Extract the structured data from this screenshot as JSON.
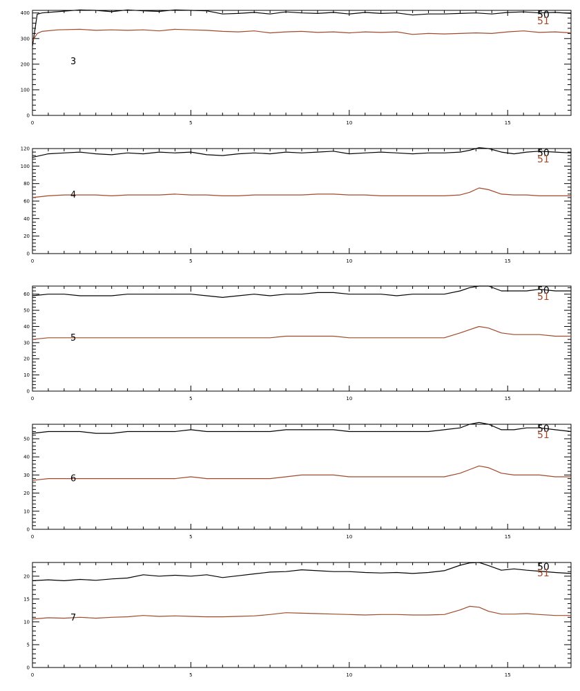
{
  "colors": {
    "series_50": "#000000",
    "series_51": "#a0482a",
    "axis": "#000000",
    "background": "#ffffff"
  },
  "chart_data": [
    {
      "type": "line",
      "panel_label": "3",
      "xlim": [
        0,
        17
      ],
      "ylim": [
        0,
        410
      ],
      "xticks": [
        0,
        5,
        10,
        15
      ],
      "yticks": [
        0,
        100,
        200,
        300,
        400
      ],
      "legend": [
        "50",
        "51"
      ],
      "series": [
        {
          "name": "50",
          "x": [
            0,
            0.15,
            0.3,
            0.8,
            1.5,
            2,
            2.5,
            3,
            3.5,
            4,
            4.5,
            5,
            5.5,
            6,
            6.5,
            7,
            7.5,
            8,
            8.5,
            9,
            9.5,
            10,
            10.5,
            11,
            11.5,
            12,
            12.5,
            13,
            13.5,
            14,
            14.5,
            15,
            15.5,
            16,
            16.5,
            17
          ],
          "y": [
            270,
            395,
            400,
            405,
            412,
            410,
            405,
            412,
            408,
            406,
            412,
            410,
            408,
            396,
            398,
            402,
            396,
            404,
            400,
            398,
            402,
            396,
            402,
            398,
            400,
            392,
            396,
            396,
            398,
            400,
            396,
            402,
            404,
            400,
            402,
            398
          ]
        },
        {
          "name": "51",
          "x": [
            0,
            0.15,
            0.3,
            0.8,
            1.5,
            2,
            2.5,
            3,
            3.5,
            4,
            4.5,
            5,
            5.5,
            6,
            6.5,
            7,
            7.5,
            8,
            8.5,
            9,
            9.5,
            10,
            10.5,
            11,
            11.5,
            12,
            12.5,
            13,
            13.5,
            14,
            14.5,
            15,
            15.5,
            16,
            16.5,
            17
          ],
          "y": [
            290,
            320,
            328,
            334,
            336,
            332,
            334,
            332,
            334,
            330,
            336,
            334,
            332,
            328,
            326,
            330,
            322,
            326,
            328,
            324,
            326,
            322,
            326,
            324,
            326,
            316,
            320,
            318,
            320,
            322,
            320,
            326,
            330,
            324,
            326,
            322
          ]
        }
      ]
    },
    {
      "type": "line",
      "panel_label": "4",
      "xlim": [
        0,
        17
      ],
      "ylim": [
        0,
        120
      ],
      "xticks": [
        0,
        5,
        10,
        15
      ],
      "yticks": [
        0,
        20,
        40,
        60,
        80,
        100,
        120
      ],
      "legend": [
        "50",
        "51"
      ],
      "series": [
        {
          "name": "50",
          "x": [
            0,
            0.5,
            1,
            1.5,
            2,
            2.5,
            3,
            3.5,
            4,
            4.5,
            5,
            5.5,
            6,
            6.5,
            7,
            7.5,
            8,
            8.5,
            9,
            9.5,
            10,
            10.5,
            11,
            11.5,
            12,
            12.5,
            13,
            13.5,
            13.8,
            14.1,
            14.4,
            14.8,
            15.2,
            15.6,
            16,
            16.5,
            17
          ],
          "y": [
            110,
            114,
            115,
            116,
            114,
            113,
            115,
            114,
            116,
            115,
            116,
            113,
            112,
            114,
            115,
            114,
            116,
            115,
            116,
            117,
            114,
            115,
            116,
            115,
            114,
            115,
            115,
            116,
            118,
            121,
            120,
            116,
            114,
            116,
            117,
            116,
            115
          ]
        },
        {
          "name": "51",
          "x": [
            0,
            0.5,
            1,
            1.5,
            2,
            2.5,
            3,
            3.5,
            4,
            4.5,
            5,
            5.5,
            6,
            6.5,
            7,
            7.5,
            8,
            8.5,
            9,
            9.5,
            10,
            10.5,
            11,
            11.5,
            12,
            12.5,
            13,
            13.5,
            13.8,
            14.1,
            14.4,
            14.8,
            15.2,
            15.6,
            16,
            16.5,
            17
          ],
          "y": [
            64,
            66,
            67,
            67,
            67,
            66,
            67,
            67,
            67,
            68,
            67,
            67,
            66,
            66,
            67,
            67,
            67,
            67,
            68,
            68,
            67,
            67,
            66,
            66,
            66,
            66,
            66,
            67,
            70,
            75,
            73,
            68,
            67,
            67,
            66,
            66,
            66
          ]
        }
      ]
    },
    {
      "type": "line",
      "panel_label": "5",
      "xlim": [
        0,
        17
      ],
      "ylim": [
        0,
        65
      ],
      "xticks": [
        0,
        5,
        10,
        15
      ],
      "yticks": [
        0,
        10,
        20,
        30,
        40,
        50,
        60
      ],
      "legend": [
        "50",
        "51"
      ],
      "series": [
        {
          "name": "50",
          "x": [
            0,
            0.5,
            1,
            1.5,
            2,
            2.5,
            3,
            3.5,
            4,
            4.5,
            5,
            5.5,
            6,
            6.5,
            7,
            7.5,
            8,
            8.5,
            9,
            9.5,
            10,
            10.5,
            11,
            11.5,
            12,
            12.5,
            13,
            13.5,
            13.8,
            14.1,
            14.4,
            14.8,
            15.2,
            15.6,
            16,
            16.5,
            17
          ],
          "y": [
            59,
            60,
            60,
            59,
            59,
            59,
            60,
            60,
            60,
            60,
            60,
            59,
            58,
            59,
            60,
            59,
            60,
            60,
            61,
            61,
            60,
            60,
            60,
            59,
            60,
            60,
            60,
            62,
            64,
            65,
            65,
            62,
            62,
            62,
            63,
            62,
            62
          ]
        },
        {
          "name": "51",
          "x": [
            0,
            0.5,
            1,
            1.5,
            2,
            2.5,
            3,
            3.5,
            4,
            4.5,
            5,
            5.5,
            6,
            6.5,
            7,
            7.5,
            8,
            8.5,
            9,
            9.5,
            10,
            10.5,
            11,
            11.5,
            12,
            12.5,
            13,
            13.5,
            13.8,
            14.1,
            14.4,
            14.8,
            15.2,
            15.6,
            16,
            16.5,
            17
          ],
          "y": [
            32,
            33,
            33,
            33,
            33,
            33,
            33,
            33,
            33,
            33,
            33,
            33,
            33,
            33,
            33,
            33,
            34,
            34,
            34,
            34,
            33,
            33,
            33,
            33,
            33,
            33,
            33,
            36,
            38,
            40,
            39,
            36,
            35,
            35,
            35,
            34,
            34
          ]
        }
      ]
    },
    {
      "type": "line",
      "panel_label": "6",
      "xlim": [
        0,
        17
      ],
      "ylim": [
        0,
        58
      ],
      "xticks": [
        0,
        5,
        10,
        15
      ],
      "yticks": [
        0,
        10,
        20,
        30,
        40,
        50
      ],
      "legend": [
        "50",
        "51"
      ],
      "series": [
        {
          "name": "50",
          "x": [
            0,
            0.5,
            1,
            1.5,
            2,
            2.5,
            3,
            3.5,
            4,
            4.5,
            5,
            5.5,
            6,
            6.5,
            7,
            7.5,
            8,
            8.5,
            9,
            9.5,
            10,
            10.5,
            11,
            11.5,
            12,
            12.5,
            13,
            13.5,
            13.8,
            14.1,
            14.4,
            14.8,
            15.2,
            15.6,
            16,
            16.5,
            17
          ],
          "y": [
            53,
            54,
            54,
            54,
            53,
            53,
            54,
            54,
            54,
            54,
            55,
            54,
            54,
            54,
            54,
            54,
            55,
            55,
            55,
            55,
            54,
            54,
            54,
            54,
            54,
            54,
            55,
            56,
            58,
            59,
            58,
            55,
            55,
            56,
            56,
            55,
            54
          ]
        },
        {
          "name": "51",
          "x": [
            0,
            0.5,
            1,
            1.5,
            2,
            2.5,
            3,
            3.5,
            4,
            4.5,
            5,
            5.5,
            6,
            6.5,
            7,
            7.5,
            8,
            8.5,
            9,
            9.5,
            10,
            10.5,
            11,
            11.5,
            12,
            12.5,
            13,
            13.5,
            13.8,
            14.1,
            14.4,
            14.8,
            15.2,
            15.6,
            16,
            16.5,
            17
          ],
          "y": [
            27,
            28,
            28,
            28,
            28,
            28,
            28,
            28,
            28,
            28,
            29,
            28,
            28,
            28,
            28,
            28,
            29,
            30,
            30,
            30,
            29,
            29,
            29,
            29,
            29,
            29,
            29,
            31,
            33,
            35,
            34,
            31,
            30,
            30,
            30,
            29,
            29
          ]
        }
      ]
    },
    {
      "type": "line",
      "panel_label": "7",
      "xlim": [
        0,
        17
      ],
      "ylim": [
        0,
        23
      ],
      "xticks": [
        0,
        5,
        10,
        15
      ],
      "yticks": [
        0,
        5,
        10,
        15,
        20
      ],
      "legend": [
        "50",
        "51"
      ],
      "series": [
        {
          "name": "50",
          "x": [
            0,
            0.5,
            1,
            1.5,
            2,
            2.5,
            3,
            3.5,
            4,
            4.5,
            5,
            5.5,
            6,
            6.5,
            7,
            7.5,
            8,
            8.5,
            9,
            9.5,
            10,
            10.5,
            11,
            11.5,
            12,
            12.5,
            13,
            13.5,
            13.8,
            14.1,
            14.4,
            14.8,
            15.2,
            15.6,
            16,
            16.5,
            17
          ],
          "y": [
            19,
            19.2,
            19,
            19.3,
            19.1,
            19.4,
            19.6,
            20.3,
            20,
            20.2,
            20,
            20.3,
            19.7,
            20.1,
            20.5,
            20.9,
            21,
            21.4,
            21.2,
            21,
            21,
            20.8,
            20.7,
            20.8,
            20.6,
            20.8,
            21.2,
            22.4,
            22.9,
            23,
            22.3,
            21.3,
            21.6,
            21.3,
            21.1,
            20.8,
            20.6
          ]
        },
        {
          "name": "51",
          "x": [
            0,
            0.5,
            1,
            1.5,
            2,
            2.5,
            3,
            3.5,
            4,
            4.5,
            5,
            5.5,
            6,
            6.5,
            7,
            7.5,
            8,
            8.5,
            9,
            9.5,
            10,
            10.5,
            11,
            11.5,
            12,
            12.5,
            13,
            13.5,
            13.8,
            14.1,
            14.4,
            14.8,
            15.2,
            15.6,
            16,
            16.5,
            17
          ],
          "y": [
            10.6,
            10.9,
            10.8,
            11,
            10.8,
            11,
            11.1,
            11.4,
            11.2,
            11.3,
            11.2,
            11.1,
            11.1,
            11.2,
            11.3,
            11.6,
            12,
            11.9,
            11.8,
            11.7,
            11.6,
            11.5,
            11.6,
            11.6,
            11.5,
            11.5,
            11.6,
            12.6,
            13.4,
            13.2,
            12.3,
            11.7,
            11.7,
            11.8,
            11.6,
            11.4,
            11.4
          ]
        }
      ]
    }
  ]
}
